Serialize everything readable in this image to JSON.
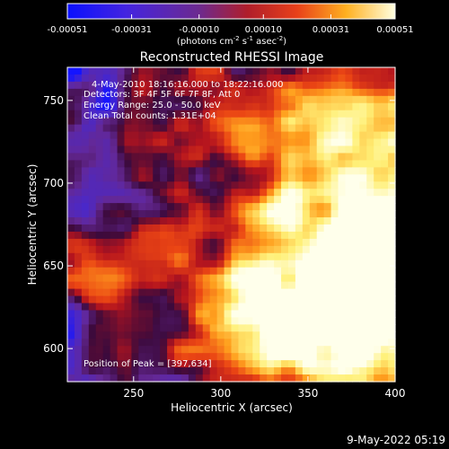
{
  "chart_data": {
    "type": "heatmap",
    "title": "Reconstructed RHESSI Image",
    "xlabel": "Heliocentric X (arcsec)",
    "ylabel": "Heliocentric Y (arcsec)",
    "xlim": [
      212,
      400
    ],
    "ylim": [
      580,
      770
    ],
    "xticks": [
      250,
      300,
      350,
      400
    ],
    "yticks": [
      600,
      650,
      700,
      750
    ],
    "colorbar": {
      "range": [
        -0.00051,
        0.00051
      ],
      "tick_values": [
        -0.00051,
        -0.00031,
        -0.0001,
        0.0001,
        0.00031,
        0.00051
      ],
      "tick_labels": [
        "-0.00051",
        "-0.00031",
        "-0.00010",
        "0.00010",
        "0.00031",
        "0.00051"
      ],
      "unit_label_parts": [
        "(photons cm",
        "-2",
        " s",
        "-1",
        " asec",
        "-2",
        ")"
      ]
    },
    "info_lines": [
      "4-May-2010 18:16:16.000 to 18:22:16.000",
      "Detectors: 3F 4F 5F 6F 7F 8F, Att 0",
      "Energy Range: 25.0 - 50.0 keV",
      "Clean      Total counts: 1.31E+04"
    ],
    "peak_label": "Position of Peak = [397,634]",
    "peak": [
      397,
      634
    ],
    "timestamp": "9-May-2022 05:19",
    "colors": [
      "#1a10ff",
      "#7a2cd0",
      "#c81e28",
      "#ff7a10",
      "#ffff70",
      "#ffffff"
    ]
  }
}
